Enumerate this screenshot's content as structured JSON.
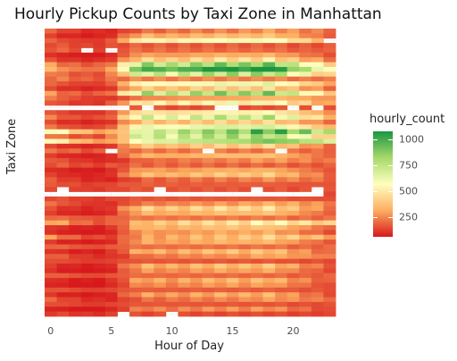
{
  "chart_data": {
    "type": "heatmap",
    "title": "Hourly Pickup Counts by Taxi Zone in Manhattan",
    "xlabel": "Hour of Day",
    "ylabel": "Taxi Zone",
    "x": [
      0,
      1,
      2,
      3,
      4,
      5,
      6,
      7,
      8,
      9,
      10,
      11,
      12,
      13,
      14,
      15,
      16,
      17,
      18,
      19,
      20,
      21,
      22,
      23
    ],
    "x_ticks": [
      0,
      5,
      10,
      15,
      20
    ],
    "y_tick_labels": "not legible",
    "legend": {
      "title": "hourly_count",
      "ticks": [
        250,
        500,
        750,
        1000
      ],
      "range": [
        60,
        1080
      ],
      "colors": [
        "#d7191c",
        "#fdae61",
        "#ffffbf",
        "#a6d96a",
        "#1a9641"
      ],
      "position": "right"
    },
    "grid": true,
    "zone_count": 60,
    "rows": [
      {
        "base": 200,
        "shape": "evening",
        "missing": []
      },
      {
        "base": 260,
        "shape": "day",
        "missing": []
      },
      {
        "base": 420,
        "shape": "day",
        "missing": [
          23
        ]
      },
      {
        "base": 160,
        "shape": "flat",
        "missing": []
      },
      {
        "base": 180,
        "shape": "flat",
        "missing": [
          3,
          5
        ]
      },
      {
        "base": 230,
        "shape": "day",
        "missing": []
      },
      {
        "base": 330,
        "shape": "day",
        "missing": []
      },
      {
        "base": 620,
        "shape": "day",
        "missing": []
      },
      {
        "base": 780,
        "shape": "day",
        "missing": []
      },
      {
        "base": 560,
        "shape": "day",
        "missing": []
      },
      {
        "base": 220,
        "shape": "flat",
        "missing": []
      },
      {
        "base": 450,
        "shape": "day",
        "missing": []
      },
      {
        "base": 300,
        "shape": "day",
        "missing": []
      },
      {
        "base": 600,
        "shape": "day",
        "missing": []
      },
      {
        "base": 250,
        "shape": "evening",
        "missing": []
      },
      {
        "base": 400,
        "shape": "day",
        "missing": []
      },
      {
        "base": 140,
        "shape": "flat",
        "missing": [
          0,
          1,
          2,
          3,
          4,
          5,
          6,
          8,
          14,
          15,
          20,
          22
        ]
      },
      {
        "base": 380,
        "shape": "day",
        "missing": []
      },
      {
        "base": 520,
        "shape": "day",
        "missing": []
      },
      {
        "base": 300,
        "shape": "day",
        "missing": []
      },
      {
        "base": 480,
        "shape": "day",
        "missing": []
      },
      {
        "base": 700,
        "shape": "evening",
        "missing": []
      },
      {
        "base": 560,
        "shape": "day",
        "missing": []
      },
      {
        "base": 650,
        "shape": "evening",
        "missing": []
      },
      {
        "base": 300,
        "shape": "day",
        "missing": []
      },
      {
        "base": 200,
        "shape": "flat",
        "missing": [
          5,
          13,
          19
        ]
      },
      {
        "base": 260,
        "shape": "day",
        "missing": []
      },
      {
        "base": 200,
        "shape": "evening",
        "missing": []
      },
      {
        "base": 170,
        "shape": "flat",
        "missing": []
      },
      {
        "base": 230,
        "shape": "day",
        "missing": []
      },
      {
        "base": 280,
        "shape": "day",
        "missing": []
      },
      {
        "base": 180,
        "shape": "evening",
        "missing": []
      },
      {
        "base": 160,
        "shape": "flat",
        "missing": []
      },
      {
        "base": 150,
        "shape": "flat",
        "missing": [
          1,
          9,
          17,
          22
        ]
      },
      {
        "base": 120,
        "shape": "flat",
        "missing": [
          0,
          1,
          2,
          3,
          4,
          5,
          6,
          7,
          8,
          9,
          10,
          11,
          12,
          13,
          14,
          15,
          16,
          17,
          18,
          19,
          20,
          21,
          22
        ]
      },
      {
        "base": 150,
        "shape": "flat",
        "missing": []
      },
      {
        "base": 230,
        "shape": "evening",
        "missing": []
      },
      {
        "base": 320,
        "shape": "day",
        "missing": []
      },
      {
        "base": 260,
        "shape": "day",
        "missing": []
      },
      {
        "base": 200,
        "shape": "flat",
        "missing": []
      },
      {
        "base": 380,
        "shape": "evening",
        "missing": []
      },
      {
        "base": 270,
        "shape": "day",
        "missing": []
      },
      {
        "base": 220,
        "shape": "day",
        "missing": []
      },
      {
        "base": 300,
        "shape": "evening",
        "missing": []
      },
      {
        "base": 240,
        "shape": "day",
        "missing": []
      },
      {
        "base": 190,
        "shape": "flat",
        "missing": []
      },
      {
        "base": 260,
        "shape": "day",
        "missing": []
      },
      {
        "base": 220,
        "shape": "evening",
        "missing": []
      },
      {
        "base": 150,
        "shape": "flat",
        "missing": []
      },
      {
        "base": 260,
        "shape": "day",
        "missing": []
      },
      {
        "base": 210,
        "shape": "day",
        "missing": []
      },
      {
        "base": 180,
        "shape": "flat",
        "missing": []
      },
      {
        "base": 240,
        "shape": "day",
        "missing": []
      },
      {
        "base": 200,
        "shape": "day",
        "missing": []
      },
      {
        "base": 160,
        "shape": "flat",
        "missing": []
      },
      {
        "base": 230,
        "shape": "day",
        "missing": []
      },
      {
        "base": 200,
        "shape": "evening",
        "missing": []
      },
      {
        "base": 150,
        "shape": "flat",
        "missing": []
      },
      {
        "base": 190,
        "shape": "day",
        "missing": []
      },
      {
        "base": 130,
        "shape": "flat",
        "missing": [
          6,
          10
        ]
      }
    ]
  }
}
